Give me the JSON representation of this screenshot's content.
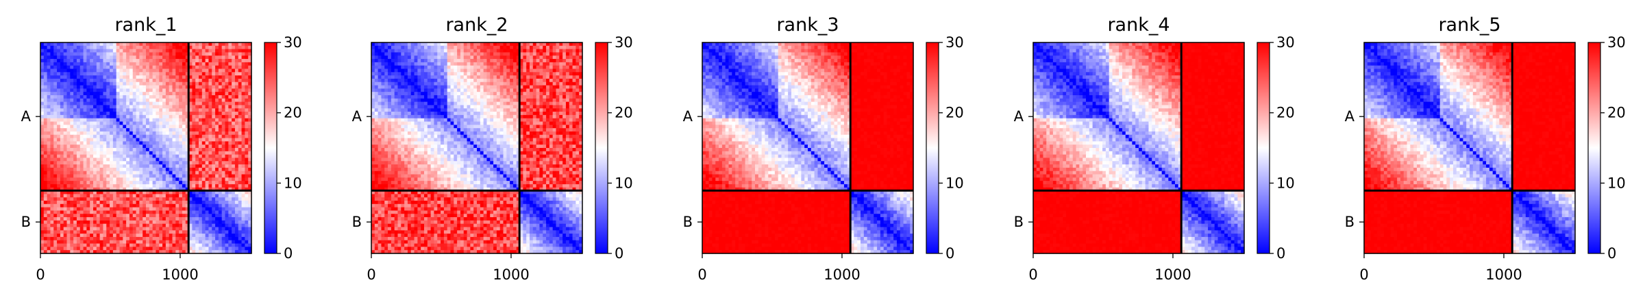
{
  "chart_data": {
    "type": "heatmap",
    "figure": "pAE plots for 5 ranked models, chains A and B",
    "colormap": {
      "name": "bwr",
      "colors": [
        "#0000ff",
        "#ffffff",
        "#ff0000"
      ]
    },
    "vmin": 0,
    "vmax": 30,
    "colorbar_ticks": [
      "0",
      "10",
      "20",
      "30"
    ],
    "x_ticks": [
      "0",
      "1000"
    ],
    "y_tick_labels": [
      "A",
      "B"
    ],
    "chain_boundary_residue": 1060,
    "total_residues": 1510,
    "divider_color": "#000000",
    "panels": [
      {
        "title": "rank_1",
        "interchain_mean_pae": 25,
        "intra_A_mean_pae": 9,
        "intra_B_mean_pae": 7
      },
      {
        "title": "rank_2",
        "interchain_mean_pae": 26,
        "intra_A_mean_pae": 9,
        "intra_B_mean_pae": 7
      },
      {
        "title": "rank_3",
        "interchain_mean_pae": 30,
        "intra_A_mean_pae": 9,
        "intra_B_mean_pae": 7
      },
      {
        "title": "rank_4",
        "interchain_mean_pae": 30,
        "intra_A_mean_pae": 9,
        "intra_B_mean_pae": 7
      },
      {
        "title": "rank_5",
        "interchain_mean_pae": 30,
        "intra_A_mean_pae": 9,
        "intra_B_mean_pae": 7
      }
    ]
  }
}
